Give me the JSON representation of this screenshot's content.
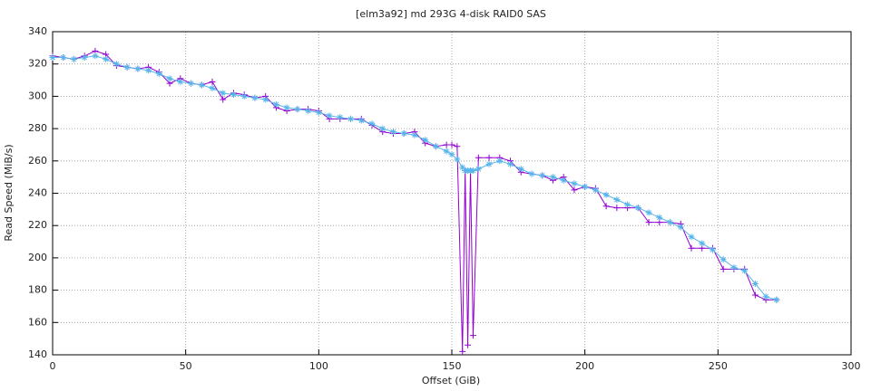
{
  "chart_data": {
    "type": "line",
    "title": "[elm3a92] md 293G 4-disk RAID0 SAS",
    "xlabel": "Offset (GiB)",
    "ylabel": "Read Speed (MiB/s)",
    "x": [
      0,
      4,
      8,
      12,
      16,
      20,
      24,
      28,
      32,
      36,
      40,
      44,
      48,
      52,
      56,
      60,
      64,
      68,
      72,
      76,
      80,
      84,
      88,
      92,
      96,
      100,
      104,
      108,
      112,
      116,
      120,
      124,
      128,
      132,
      136,
      140,
      144,
      148,
      150,
      152,
      154,
      155,
      156,
      157,
      158,
      160,
      164,
      168,
      172,
      176,
      180,
      184,
      188,
      192,
      196,
      200,
      204,
      208,
      212,
      216,
      220,
      224,
      228,
      232,
      236,
      240,
      244,
      248,
      252,
      256,
      260,
      264,
      268,
      272
    ],
    "series": [
      {
        "color": "#9400d3",
        "marker": "+",
        "values": [
          325,
          324,
          323,
          325,
          328,
          326,
          319,
          318,
          317,
          318,
          315,
          308,
          311,
          308,
          307,
          309,
          298,
          302,
          301,
          299,
          300,
          293,
          291,
          292,
          292,
          291,
          286,
          286,
          286,
          286,
          282,
          278,
          277,
          277,
          278,
          271,
          269,
          270,
          270,
          269,
          142,
          254,
          146,
          254,
          152,
          262,
          262,
          262,
          260,
          253,
          252,
          251,
          248,
          250,
          242,
          244,
          243,
          232,
          231,
          231,
          231,
          222,
          222,
          222,
          221,
          206,
          206,
          206,
          193,
          193,
          193,
          177,
          174,
          174
        ]
      },
      {
        "color": "#56b4e9",
        "marker": "*",
        "values": [
          324,
          324,
          323,
          324,
          325,
          323,
          320,
          318,
          317,
          316,
          314,
          311,
          309,
          308,
          307,
          305,
          302,
          301,
          300,
          299,
          298,
          295,
          293,
          292,
          291,
          290,
          288,
          287,
          286,
          285,
          283,
          280,
          278,
          277,
          276,
          273,
          269,
          266,
          264,
          261,
          256,
          254,
          254,
          254,
          254,
          255,
          258,
          260,
          258,
          255,
          252,
          251,
          250,
          248,
          246,
          244,
          242,
          239,
          236,
          233,
          231,
          228,
          225,
          222,
          219,
          213,
          209,
          205,
          199,
          194,
          192,
          184,
          176,
          174
        ]
      }
    ],
    "xlim": [
      0,
      300
    ],
    "xticks": [
      0,
      50,
      100,
      150,
      200,
      250,
      300
    ],
    "ylim": [
      140,
      340
    ],
    "yticks": [
      140,
      160,
      180,
      200,
      220,
      240,
      260,
      280,
      300,
      320,
      340
    ],
    "grid": true
  }
}
